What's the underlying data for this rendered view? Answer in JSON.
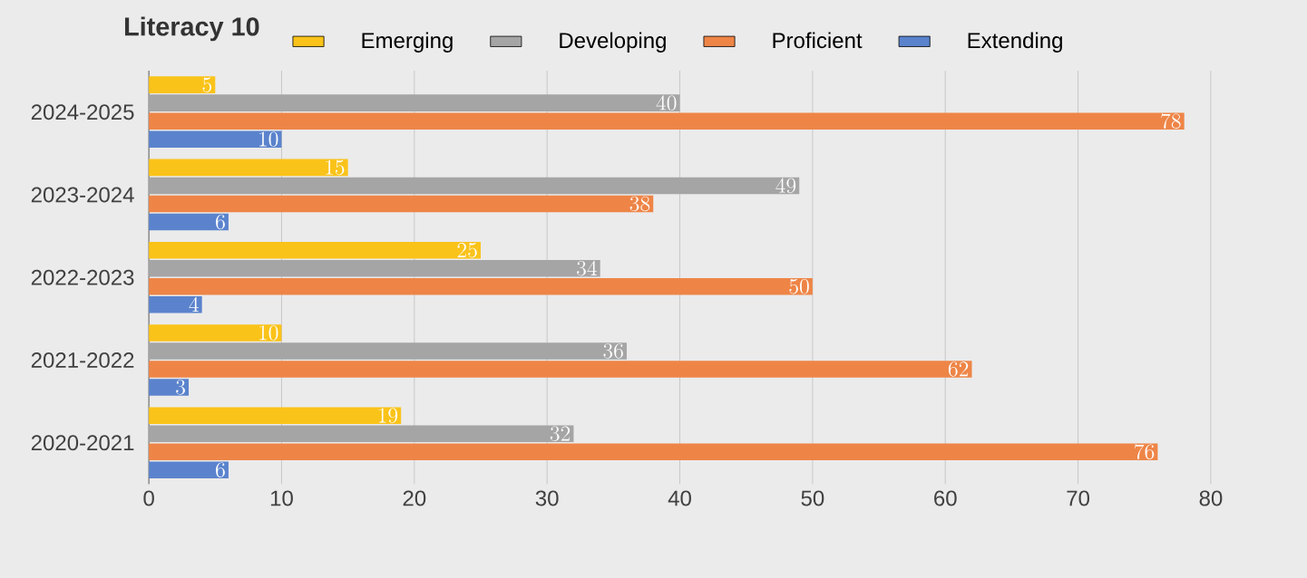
{
  "chart_data": {
    "type": "bar",
    "orientation": "horizontal",
    "title": "Literacy 10",
    "categories": [
      "2024-2025",
      "2023-2024",
      "2022-2023",
      "2021-2022",
      "2020-2021"
    ],
    "series": [
      {
        "name": "Emerging",
        "color": "#fac31a",
        "values": [
          5,
          15,
          25,
          10,
          19
        ]
      },
      {
        "name": "Developing",
        "color": "#a5a5a5",
        "values": [
          40,
          49,
          34,
          36,
          32
        ]
      },
      {
        "name": "Proficient",
        "color": "#ee8547",
        "values": [
          78,
          38,
          50,
          62,
          76
        ]
      },
      {
        "name": "Extending",
        "color": "#5b83cd",
        "values": [
          10,
          6,
          4,
          3,
          6
        ]
      }
    ],
    "xlim": [
      0,
      80
    ],
    "xticks": [
      0,
      10,
      20,
      30,
      40,
      50,
      60,
      70,
      80
    ],
    "grid": "x",
    "legend": "top",
    "data_labels": true
  }
}
